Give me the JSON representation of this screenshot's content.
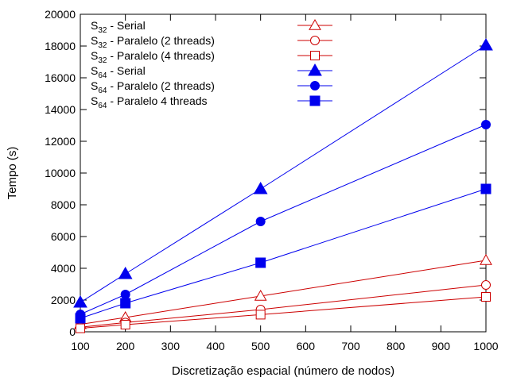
{
  "chart_data": {
    "type": "line",
    "title": "",
    "xlabel": "Discretização espacial (número de nodos)",
    "ylabel": "Tempo (s)",
    "xlim": [
      100,
      1000
    ],
    "ylim": [
      0,
      20000
    ],
    "xticks": [
      100,
      200,
      300,
      400,
      500,
      600,
      700,
      800,
      900,
      1000
    ],
    "yticks": [
      0,
      2000,
      4000,
      6000,
      8000,
      10000,
      12000,
      14000,
      16000,
      18000,
      20000
    ],
    "grid": false,
    "legend_position": "top-left",
    "x": [
      100,
      200,
      500,
      1000
    ],
    "series": [
      {
        "name": "S32 - Serial",
        "legend_prefix": "S",
        "legend_sub": "32",
        "legend_suffix": " - Serial",
        "color": "#cc0000",
        "marker": "triangle",
        "filled": false,
        "values": [
          470,
          900,
          2250,
          4500
        ]
      },
      {
        "name": "S32 - Paralelo (2 threads)",
        "legend_prefix": "S",
        "legend_sub": "32",
        "legend_suffix": " - Paralelo (2 threads)",
        "color": "#cc0000",
        "marker": "circle",
        "filled": false,
        "values": [
          290,
          580,
          1400,
          2950
        ]
      },
      {
        "name": "S32 - Paralelo (4 threads)",
        "legend_prefix": "S",
        "legend_sub": "32",
        "legend_suffix": " - Paralelo (4 threads)",
        "color": "#cc0000",
        "marker": "square",
        "filled": false,
        "values": [
          220,
          450,
          1080,
          2200
        ]
      },
      {
        "name": "S64 - Serial",
        "legend_prefix": "S",
        "legend_sub": "64",
        "legend_suffix": " - Serial",
        "color": "#0000ee",
        "marker": "triangle",
        "filled": true,
        "values": [
          1850,
          3650,
          9000,
          18050
        ]
      },
      {
        "name": "S64 - Paralelo (2 threads)",
        "legend_prefix": "S",
        "legend_sub": "64",
        "legend_suffix": " - Paralelo (2 threads)",
        "color": "#0000ee",
        "marker": "circle",
        "filled": true,
        "values": [
          1100,
          2350,
          6950,
          13050
        ]
      },
      {
        "name": "S64 - Paralelo 4 threads",
        "legend_prefix": "S",
        "legend_sub": "64",
        "legend_suffix": " - Paralelo 4 threads",
        "color": "#0000ee",
        "marker": "square",
        "filled": true,
        "values": [
          850,
          1800,
          4350,
          9000
        ]
      }
    ]
  }
}
